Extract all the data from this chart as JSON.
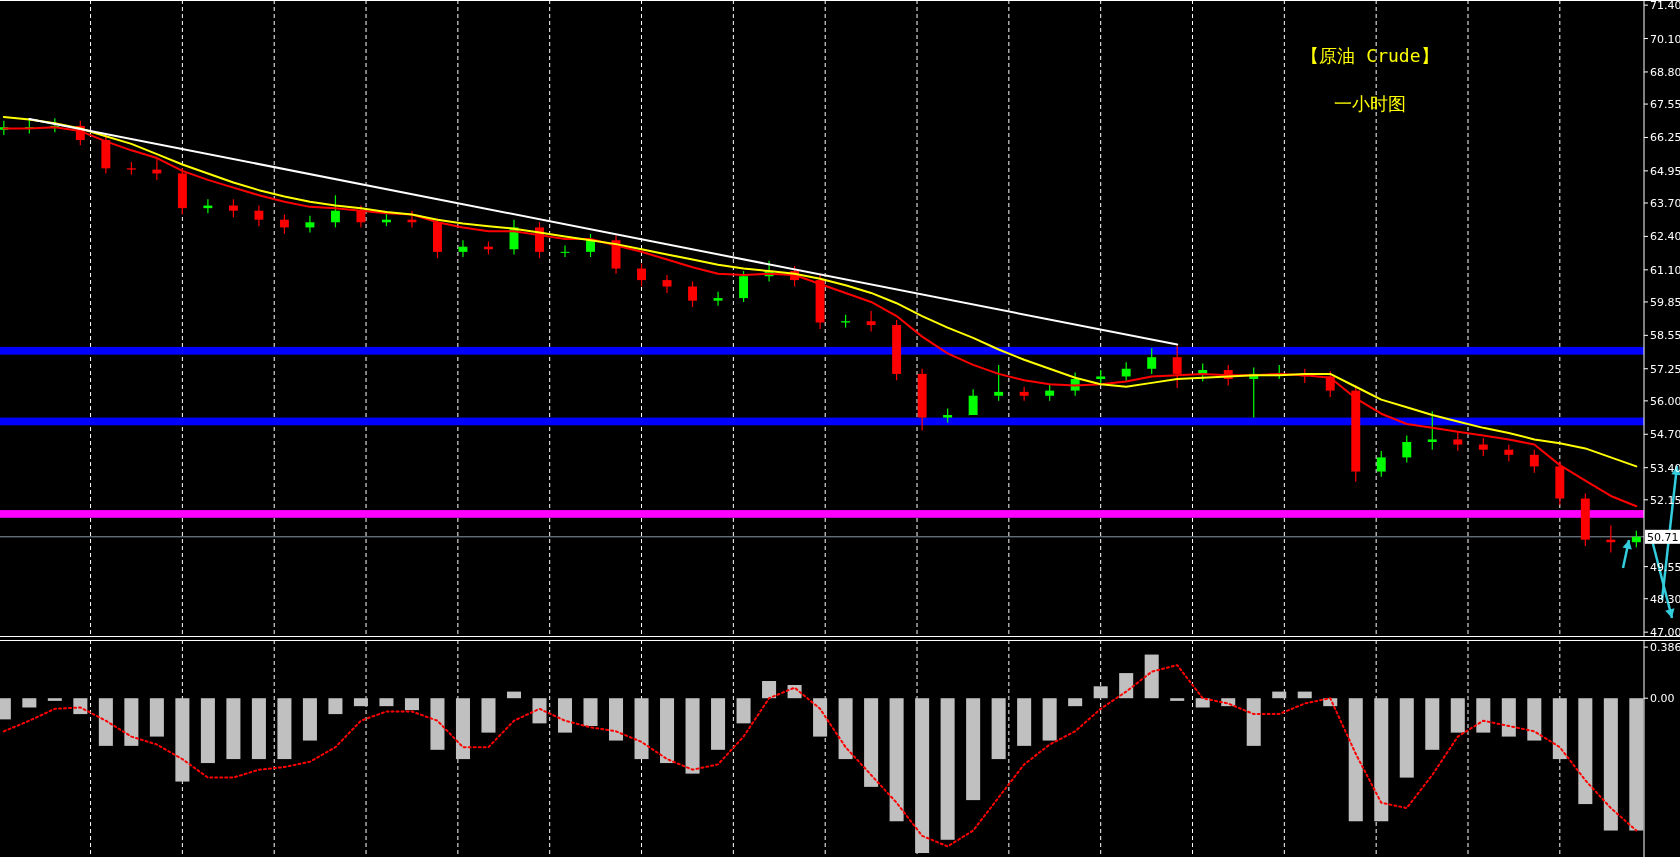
{
  "chart_data": [
    {
      "type": "candlestick",
      "title": "【原油 Crude】",
      "subtitle": "一小时图",
      "categories": [
        null,
        null,
        null,
        null,
        null,
        null,
        null,
        null,
        null,
        null,
        null,
        null,
        null,
        null,
        null,
        null,
        null,
        null,
        null,
        null,
        null,
        null,
        null,
        null,
        null,
        null,
        null,
        null,
        null,
        null,
        null,
        null,
        null,
        null,
        null,
        null,
        null,
        null,
        null,
        null,
        null,
        null,
        null,
        null,
        null,
        null,
        null,
        null,
        null,
        null,
        null,
        null,
        null,
        null,
        null,
        null,
        null,
        null,
        null,
        null,
        null,
        null,
        null,
        null,
        null
      ],
      "ohlc": [
        [
          66.55,
          66.9,
          66.35,
          66.65
        ],
        [
          66.65,
          66.95,
          66.4,
          66.65
        ],
        [
          66.65,
          67.0,
          66.45,
          66.7
        ],
        [
          66.7,
          66.9,
          65.95,
          66.15
        ],
        [
          66.15,
          66.35,
          64.85,
          65.05
        ],
        [
          65.05,
          65.3,
          64.8,
          65.0
        ],
        [
          65.0,
          65.4,
          64.6,
          64.85
        ],
        [
          64.85,
          65.05,
          63.25,
          63.5
        ],
        [
          63.5,
          63.85,
          63.3,
          63.6
        ],
        [
          63.6,
          63.85,
          63.15,
          63.4
        ],
        [
          63.4,
          63.6,
          62.8,
          63.05
        ],
        [
          63.05,
          63.25,
          62.5,
          62.75
        ],
        [
          62.75,
          63.2,
          62.55,
          62.95
        ],
        [
          62.95,
          64.0,
          62.75,
          63.4
        ],
        [
          63.4,
          63.6,
          62.75,
          62.95
        ],
        [
          62.95,
          63.3,
          62.8,
          63.05
        ],
        [
          63.05,
          63.4,
          62.75,
          62.95
        ],
        [
          62.95,
          63.1,
          61.55,
          61.8
        ],
        [
          61.8,
          62.25,
          61.6,
          62.0
        ],
        [
          62.0,
          62.2,
          61.7,
          61.9
        ],
        [
          61.9,
          63.05,
          61.7,
          62.75
        ],
        [
          62.75,
          62.95,
          61.55,
          61.8
        ],
        [
          61.8,
          62.05,
          61.6,
          61.8
        ],
        [
          61.8,
          62.5,
          61.6,
          62.25
        ],
        [
          62.25,
          62.45,
          60.95,
          61.15
        ],
        [
          61.15,
          61.35,
          60.45,
          60.7
        ],
        [
          60.7,
          60.9,
          60.2,
          60.45
        ],
        [
          60.45,
          60.65,
          59.65,
          59.9
        ],
        [
          59.9,
          60.25,
          59.7,
          60.0
        ],
        [
          60.0,
          61.05,
          59.85,
          60.85
        ],
        [
          60.85,
          61.45,
          60.65,
          61.05
        ],
        [
          61.05,
          61.25,
          60.45,
          60.7
        ],
        [
          60.7,
          60.9,
          58.8,
          59.05
        ],
        [
          59.05,
          59.35,
          58.85,
          59.1
        ],
        [
          59.1,
          59.5,
          58.7,
          58.95
        ],
        [
          58.95,
          59.15,
          56.8,
          57.05
        ],
        [
          57.05,
          57.25,
          54.85,
          55.35
        ],
        [
          55.35,
          55.7,
          55.15,
          55.45
        ],
        [
          55.45,
          56.45,
          55.45,
          56.2
        ],
        [
          56.2,
          57.4,
          56.0,
          56.35
        ],
        [
          56.35,
          56.55,
          56.0,
          56.2
        ],
        [
          56.2,
          56.65,
          56.0,
          56.4
        ],
        [
          56.4,
          57.1,
          56.2,
          56.85
        ],
        [
          56.85,
          57.2,
          56.65,
          56.95
        ],
        [
          56.95,
          57.5,
          56.75,
          57.25
        ],
        [
          57.25,
          58.05,
          57.05,
          57.7
        ],
        [
          57.7,
          58.2,
          56.5,
          57.05
        ],
        [
          57.05,
          57.45,
          56.75,
          57.2
        ],
        [
          57.2,
          57.4,
          56.6,
          56.85
        ],
        [
          56.85,
          57.3,
          55.35,
          57.05
        ],
        [
          57.05,
          57.4,
          56.85,
          57.05
        ],
        [
          57.05,
          57.25,
          56.7,
          56.95
        ],
        [
          56.95,
          57.15,
          56.15,
          56.4
        ],
        [
          56.4,
          56.6,
          52.85,
          53.25
        ],
        [
          53.25,
          54.05,
          53.05,
          53.8
        ],
        [
          53.8,
          54.65,
          53.6,
          54.4
        ],
        [
          54.4,
          55.6,
          54.1,
          54.5
        ],
        [
          54.5,
          54.8,
          54.05,
          54.3
        ],
        [
          54.3,
          54.55,
          53.85,
          54.1
        ],
        [
          54.1,
          54.3,
          53.65,
          53.9
        ],
        [
          53.9,
          54.1,
          53.2,
          53.45
        ],
        [
          53.45,
          53.65,
          51.95,
          52.2
        ],
        [
          52.2,
          52.4,
          50.35,
          50.6
        ],
        [
          50.6,
          51.15,
          50.1,
          50.5
        ],
        [
          50.5,
          50.95,
          50.3,
          50.71
        ]
      ],
      "colors": [
        "#00ff00",
        "#00ff00",
        "#00ff00",
        "#ff0000",
        "#ff0000",
        "#ff0000",
        "#ff0000",
        "#ff0000",
        "#00ff00",
        "#ff0000",
        "#ff0000",
        "#ff0000",
        "#00ff00",
        "#00ff00",
        "#ff0000",
        "#00ff00",
        "#ff0000",
        "#ff0000",
        "#00ff00",
        "#ff0000",
        "#00ff00",
        "#ff0000",
        "#00ff00",
        "#00ff00",
        "#ff0000",
        "#ff0000",
        "#ff0000",
        "#ff0000",
        "#00ff00",
        "#00ff00",
        "#00ff00",
        "#ff0000",
        "#ff0000",
        "#00ff00",
        "#ff0000",
        "#ff0000",
        "#ff0000",
        "#00ff00",
        "#00ff00",
        "#00ff00",
        "#ff0000",
        "#00ff00",
        "#00ff00",
        "#00ff00",
        "#00ff00",
        "#00ff00",
        "#ff0000",
        "#00ff00",
        "#ff0000",
        "#00ff00",
        "#00ff00",
        "#ff0000",
        "#ff0000",
        "#ff0000",
        "#00ff00",
        "#00ff00",
        "#00ff00",
        "#ff0000",
        "#ff0000",
        "#ff0000",
        "#ff0000",
        "#ff0000",
        "#ff0000",
        "#ff0000",
        "#00ff00"
      ],
      "series": [
        {
          "type": "line",
          "color": "#ff0000",
          "values": [
            66.6,
            66.6,
            66.65,
            66.5,
            66.1,
            65.75,
            65.45,
            64.95,
            64.6,
            64.3,
            64.0,
            63.75,
            63.55,
            63.5,
            63.4,
            63.3,
            63.25,
            62.95,
            62.75,
            62.6,
            62.6,
            62.45,
            62.3,
            62.3,
            62.05,
            61.8,
            61.5,
            61.2,
            60.95,
            60.9,
            60.95,
            60.9,
            60.55,
            60.2,
            59.85,
            59.3,
            58.5,
            57.85,
            57.4,
            57.05,
            56.8,
            56.65,
            56.6,
            56.65,
            56.75,
            56.95,
            57.0,
            57.05,
            57.0,
            57.0,
            57.05,
            57.0,
            56.9,
            56.1,
            55.5,
            55.1,
            54.95,
            54.8,
            54.65,
            54.5,
            54.3,
            53.5,
            52.9,
            52.3,
            51.9
          ]
        },
        {
          "type": "line",
          "color": "#ffff00",
          "values": [
            67.05,
            66.95,
            66.8,
            66.6,
            66.3,
            66.0,
            65.6,
            65.2,
            64.85,
            64.5,
            64.2,
            63.95,
            63.75,
            63.6,
            63.5,
            63.35,
            63.25,
            63.05,
            62.9,
            62.8,
            62.7,
            62.55,
            62.4,
            62.25,
            62.1,
            61.9,
            61.7,
            61.5,
            61.3,
            61.15,
            61.05,
            60.95,
            60.75,
            60.5,
            60.2,
            59.8,
            59.3,
            58.85,
            58.45,
            58.0,
            57.6,
            57.25,
            56.9,
            56.65,
            56.55,
            56.7,
            56.85,
            56.9,
            56.95,
            57.0,
            57.0,
            57.05,
            57.05,
            56.55,
            56.05,
            55.75,
            55.45,
            55.2,
            54.95,
            54.75,
            54.5,
            54.35,
            54.15,
            53.8,
            53.45
          ]
        },
        {
          "type": "line",
          "color": "#ffffff",
          "values": [
            null,
            66.97,
            null,
            null,
            null,
            null,
            null,
            null,
            null,
            null,
            null,
            null,
            null,
            null,
            null,
            null,
            null,
            null,
            null,
            null,
            null,
            null,
            null,
            null,
            null,
            null,
            null,
            null,
            null,
            null,
            null,
            null,
            null,
            null,
            null,
            null,
            null,
            null,
            null,
            null,
            null,
            null,
            null,
            null,
            null,
            null,
            58.19,
            null,
            null,
            null,
            null,
            null,
            null,
            null,
            null,
            null,
            null,
            null,
            null,
            null,
            null,
            null,
            null,
            null,
            null
          ]
        }
      ],
      "bands": [
        {
          "axis": "y",
          "from": 57.8,
          "to": 58.1,
          "color": "#0000ff"
        },
        {
          "axis": "y",
          "from": 55.05,
          "to": 55.35,
          "color": "#0000ff"
        },
        {
          "axis": "y",
          "from": 51.45,
          "to": 51.75,
          "color": "#ff00ff"
        }
      ],
      "ylim": [
        46.85,
        71.6
      ],
      "yticks": [
        {
          "value": 71.4,
          "label": "71.40"
        },
        {
          "value": 70.1,
          "label": "70.10"
        },
        {
          "value": 68.8,
          "label": "68.80"
        },
        {
          "value": 67.55,
          "label": "67.55"
        },
        {
          "value": 66.25,
          "label": "66.25"
        },
        {
          "value": 64.95,
          "label": "64.95"
        },
        {
          "value": 63.7,
          "label": "63.70"
        },
        {
          "value": 62.4,
          "label": "62.40"
        },
        {
          "value": 61.1,
          "label": "61.10"
        },
        {
          "value": 59.85,
          "label": "59.85"
        },
        {
          "value": 58.55,
          "label": "58.55"
        },
        {
          "value": 57.25,
          "label": "57.25"
        },
        {
          "value": 56.0,
          "label": "56.00"
        },
        {
          "value": 54.7,
          "label": "54.70"
        },
        {
          "value": 53.4,
          "label": "53.40"
        },
        {
          "value": 52.15,
          "label": "52.15"
        },
        {
          "value": 49.55,
          "label": "49.55"
        },
        {
          "value": 48.3,
          "label": "48.30"
        },
        {
          "value": 47.0,
          "label": "47.00"
        }
      ],
      "ref_lines": [
        {
          "axis": "y",
          "value": 50.71,
          "label": "50.71",
          "color": "#8a9aa8"
        }
      ],
      "grid": "x",
      "tick_labels": "y"
    },
    {
      "type": "bar",
      "categories": [
        null,
        null,
        null,
        null,
        null,
        null,
        null,
        null,
        null,
        null,
        null,
        null,
        null,
        null,
        null,
        null,
        null,
        null,
        null,
        null,
        null,
        null,
        null,
        null,
        null,
        null,
        null,
        null,
        null,
        null,
        null,
        null,
        null,
        null,
        null,
        null,
        null,
        null,
        null,
        null,
        null,
        null,
        null,
        null,
        null,
        null,
        null,
        null,
        null,
        null,
        null,
        null,
        null,
        null,
        null,
        null,
        null,
        null,
        null,
        null,
        null,
        null,
        null,
        null,
        null
      ],
      "series": [
        {
          "type": "bar",
          "color": "#c0c0c0",
          "values": [
            -0.16,
            -0.07,
            -0.02,
            -0.12,
            -0.36,
            -0.36,
            -0.29,
            -0.63,
            -0.49,
            -0.46,
            -0.46,
            -0.46,
            -0.32,
            -0.12,
            -0.06,
            -0.06,
            -0.09,
            -0.39,
            -0.46,
            -0.26,
            0.05,
            -0.19,
            -0.26,
            -0.21,
            -0.32,
            -0.46,
            -0.49,
            -0.57,
            -0.39,
            -0.19,
            0.13,
            0.1,
            -0.29,
            -0.46,
            -0.67,
            -0.93,
            -1.17,
            -1.07,
            -0.77,
            -0.46,
            -0.36,
            -0.32,
            -0.06,
            0.09,
            0.19,
            0.33,
            -0.02,
            -0.07,
            -0.06,
            -0.36,
            0.05,
            0.05,
            -0.06,
            -0.93,
            -0.93,
            -0.6,
            -0.39,
            -0.26,
            -0.26,
            -0.29,
            -0.32,
            -0.46,
            -0.8,
            -1.0,
            -1.0
          ]
        },
        {
          "type": "line",
          "color": "#ff0000",
          "line_style": "dotted",
          "values": [
            -0.25,
            -0.17,
            -0.08,
            -0.07,
            -0.17,
            -0.29,
            -0.35,
            -0.46,
            -0.6,
            -0.6,
            -0.54,
            -0.52,
            -0.48,
            -0.37,
            -0.17,
            -0.1,
            -0.1,
            -0.17,
            -0.37,
            -0.37,
            -0.17,
            -0.08,
            -0.17,
            -0.22,
            -0.25,
            -0.33,
            -0.46,
            -0.54,
            -0.5,
            -0.29,
            0.0,
            0.08,
            -0.08,
            -0.37,
            -0.58,
            -0.79,
            -1.04,
            -1.12,
            -1.0,
            -0.75,
            -0.5,
            -0.35,
            -0.25,
            -0.08,
            0.05,
            0.2,
            0.25,
            0.0,
            -0.04,
            -0.12,
            -0.12,
            -0.04,
            0.0,
            -0.42,
            -0.79,
            -0.83,
            -0.58,
            -0.29,
            -0.17,
            -0.21,
            -0.25,
            -0.37,
            -0.62,
            -0.83,
            -1.0
          ]
        }
      ],
      "ylim": [
        -1.2,
        0.44
      ],
      "yticks": [
        {
          "value": 0.386,
          "label": "0.386"
        },
        {
          "value": 0,
          "label": "0.00"
        }
      ],
      "grid": "x",
      "tick_labels": "y"
    }
  ]
}
